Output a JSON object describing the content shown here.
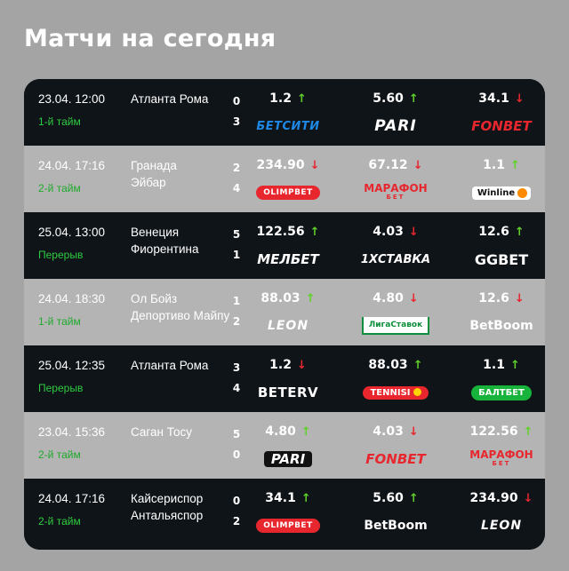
{
  "page": {
    "title": "Матчи на сегодня"
  },
  "matches": [
    {
      "datetime": "23.04. 12:00",
      "status": "1-й тайм",
      "teams": [
        "Атланта Рома",
        ""
      ],
      "scores": [
        "0",
        "3"
      ],
      "odds": [
        {
          "value": "1.2",
          "trend": "up",
          "arrow": "↑",
          "bookmaker": "БЕТСИТИ"
        },
        {
          "value": "5.60",
          "trend": "up",
          "arrow": "↑",
          "bookmaker": "PARI"
        },
        {
          "value": "34.1",
          "trend": "down",
          "arrow": "↓",
          "bookmaker": "FONBET"
        }
      ]
    },
    {
      "datetime": "24.04. 17:16",
      "status": "2-й тайм",
      "teams": [
        "Гранада",
        "Эйбар"
      ],
      "scores": [
        "2",
        "4"
      ],
      "odds": [
        {
          "value": "234.90",
          "trend": "down",
          "arrow": "↓",
          "bookmaker": "OLIMPBET"
        },
        {
          "value": "67.12",
          "trend": "down",
          "arrow": "↓",
          "bookmaker": "МАРАФОН",
          "bookmaker_sub": "БЕТ"
        },
        {
          "value": "1.1",
          "trend": "up",
          "arrow": "↑",
          "bookmaker": "Winline"
        }
      ]
    },
    {
      "datetime": "25.04. 13:00",
      "status": "Перерыв",
      "teams": [
        "Венеция",
        "Фиорентина"
      ],
      "scores": [
        "5",
        "1"
      ],
      "odds": [
        {
          "value": "122.56",
          "trend": "up",
          "arrow": "↑",
          "bookmaker": "МЕЛБЕТ"
        },
        {
          "value": "4.03",
          "trend": "down",
          "arrow": "↓",
          "bookmaker": "1XСТАВКА"
        },
        {
          "value": "12.6",
          "trend": "up",
          "arrow": "↑",
          "bookmaker": "GGBET"
        }
      ]
    },
    {
      "datetime": "24.04. 18:30",
      "status": "1-й тайм",
      "teams": [
        "Ол Бойз",
        "Депортиво Майпу"
      ],
      "scores": [
        "1",
        "2"
      ],
      "odds": [
        {
          "value": "88.03",
          "trend": "up",
          "arrow": "↑",
          "bookmaker": "LEON"
        },
        {
          "value": "4.80",
          "trend": "down",
          "arrow": "↓",
          "bookmaker": "ЛигаСтавок"
        },
        {
          "value": "12.6",
          "trend": "down",
          "arrow": "↓",
          "bookmaker": "BetBoom"
        }
      ]
    },
    {
      "datetime": "25.04. 12:35",
      "status": "Перерыв",
      "teams": [
        "Атланта Рома",
        ""
      ],
      "scores": [
        "3",
        "4"
      ],
      "odds": [
        {
          "value": "1.2",
          "trend": "down",
          "arrow": "↓",
          "bookmaker": "BETERV"
        },
        {
          "value": "88.03",
          "trend": "up",
          "arrow": "↑",
          "bookmaker": "TENNISI"
        },
        {
          "value": "1.1",
          "trend": "up",
          "arrow": "↑",
          "bookmaker": "БАЛТБЕТ"
        }
      ]
    },
    {
      "datetime": "23.04. 15:36",
      "status": "2-й тайм",
      "teams": [
        "Саган Тосу",
        ""
      ],
      "scores": [
        "5",
        "0"
      ],
      "odds": [
        {
          "value": "4.80",
          "trend": "up",
          "arrow": "↑",
          "bookmaker": "PARI"
        },
        {
          "value": "4.03",
          "trend": "down",
          "arrow": "↓",
          "bookmaker": "FONBET"
        },
        {
          "value": "122.56",
          "trend": "up",
          "arrow": "↑",
          "bookmaker": "МАРАФОН",
          "bookmaker_sub": "БЕТ"
        }
      ]
    },
    {
      "datetime": "24.04. 17:16",
      "status": "2-й тайм",
      "teams": [
        "Кайсериспор",
        "Антальяспор"
      ],
      "scores": [
        "0",
        "2"
      ],
      "odds": [
        {
          "value": "34.1",
          "trend": "up",
          "arrow": "↑",
          "bookmaker": "OLIMPBET"
        },
        {
          "value": "5.60",
          "trend": "up",
          "arrow": "↑",
          "bookmaker": "BetBoom"
        },
        {
          "value": "234.90",
          "trend": "down",
          "arrow": "↓",
          "bookmaker": "LEON"
        }
      ]
    }
  ]
}
